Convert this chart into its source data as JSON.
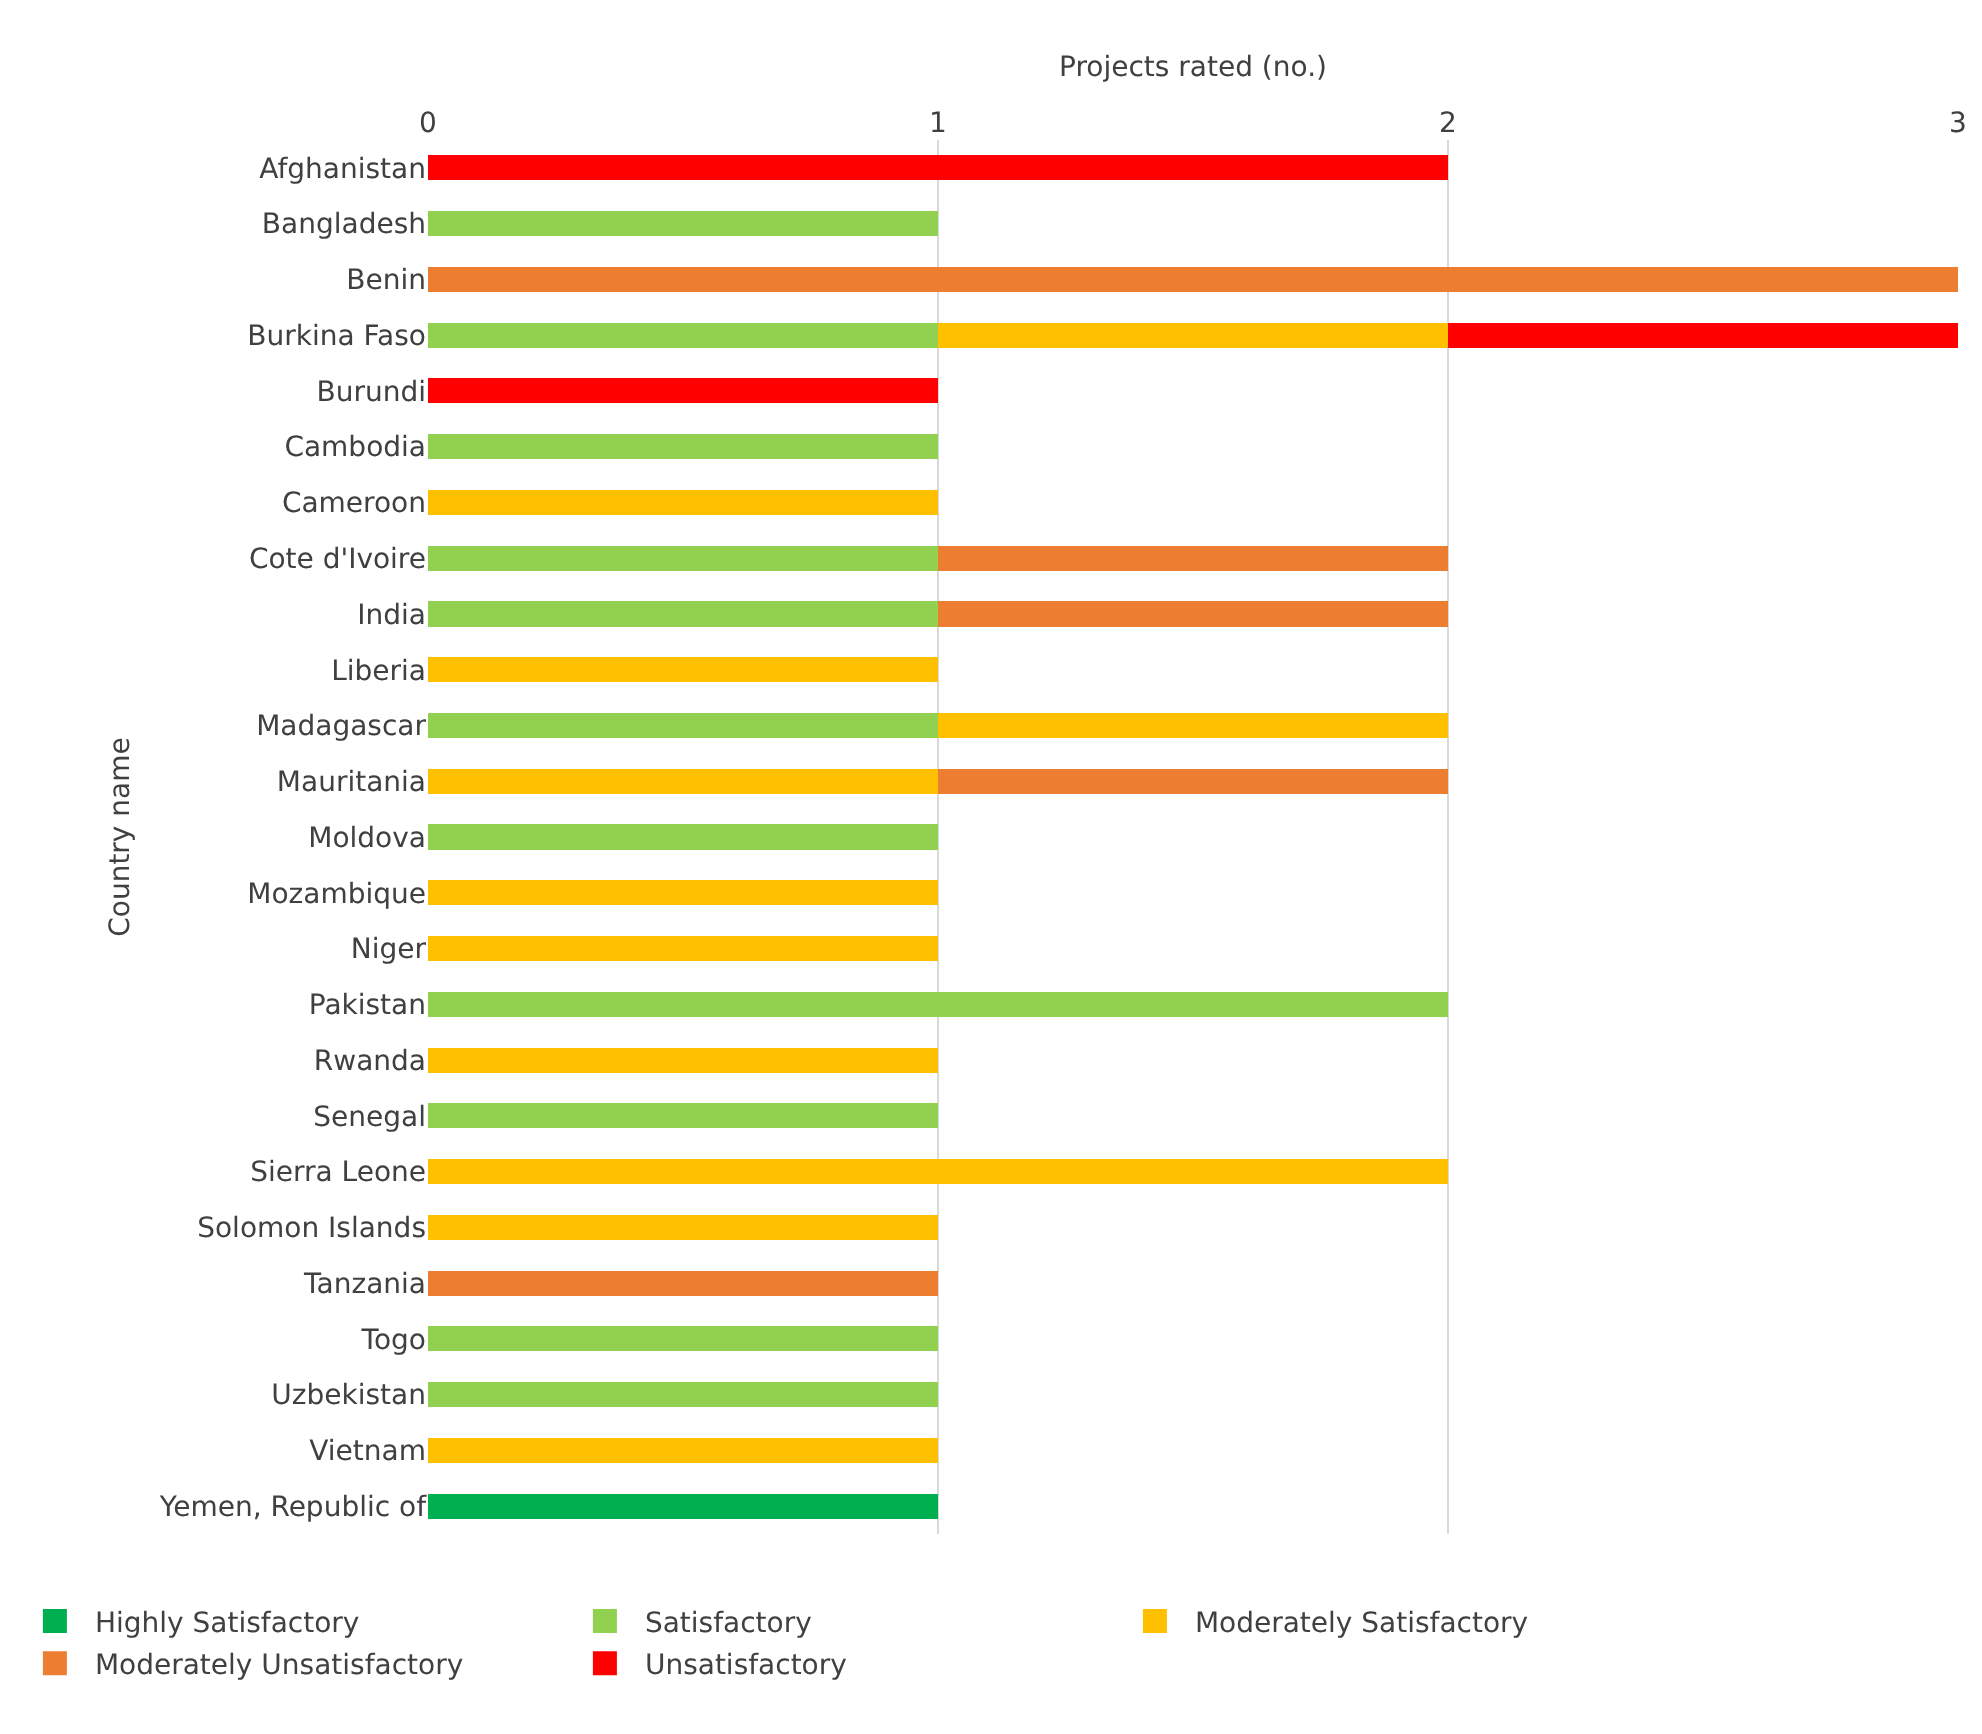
{
  "chart_data": {
    "type": "bar",
    "orientation": "horizontal",
    "stacked": true,
    "xlabel": "Projects rated (no.)",
    "ylabel": "Country name",
    "categories": [
      "Afghanistan",
      "Bangladesh",
      "Benin",
      "Burkina Faso",
      "Burundi",
      "Cambodia",
      "Cameroon",
      "Cote d'Ivoire",
      "India",
      "Liberia",
      "Madagascar",
      "Mauritania",
      "Moldova",
      "Mozambique",
      "Niger",
      "Pakistan",
      "Rwanda",
      "Senegal",
      "Sierra Leone",
      "Solomon Islands",
      "Tanzania",
      "Togo",
      "Uzbekistan",
      "Vietnam",
      "Yemen, Republic of"
    ],
    "series": [
      {
        "name": "Highly Satisfactory",
        "color": "#00b050",
        "values": [
          null,
          null,
          null,
          null,
          null,
          null,
          null,
          null,
          null,
          null,
          null,
          null,
          null,
          null,
          null,
          null,
          null,
          null,
          null,
          null,
          null,
          null,
          null,
          null,
          1
        ]
      },
      {
        "name": "Satisfactory",
        "color": "#92d050",
        "values": [
          null,
          1,
          null,
          1,
          null,
          1,
          null,
          1,
          1,
          null,
          1,
          null,
          1,
          null,
          null,
          2,
          null,
          1,
          null,
          null,
          null,
          1,
          1,
          null,
          null
        ]
      },
      {
        "name": "Moderately Satisfactory",
        "color": "#ffc000",
        "values": [
          null,
          null,
          null,
          1,
          null,
          null,
          1,
          null,
          null,
          1,
          1,
          1,
          null,
          1,
          1,
          null,
          1,
          null,
          2,
          1,
          null,
          null,
          null,
          1,
          null
        ]
      },
      {
        "name": "Moderately Unsatisfactory",
        "color": "#ed7d31",
        "values": [
          null,
          null,
          3,
          null,
          null,
          null,
          null,
          1,
          1,
          null,
          null,
          1,
          null,
          null,
          null,
          null,
          null,
          null,
          null,
          null,
          1,
          null,
          null,
          null,
          null
        ]
      },
      {
        "name": "Unsatisfactory",
        "color": "#ff0000",
        "values": [
          2,
          null,
          null,
          1,
          1,
          null,
          null,
          null,
          null,
          null,
          null,
          null,
          null,
          null,
          null,
          null,
          null,
          null,
          null,
          null,
          null,
          null,
          null,
          null,
          null
        ]
      }
    ],
    "xlim": [
      0,
      3
    ],
    "xticks": [
      0,
      1,
      2,
      3
    ],
    "grid": "x",
    "legend": "bottom"
  }
}
